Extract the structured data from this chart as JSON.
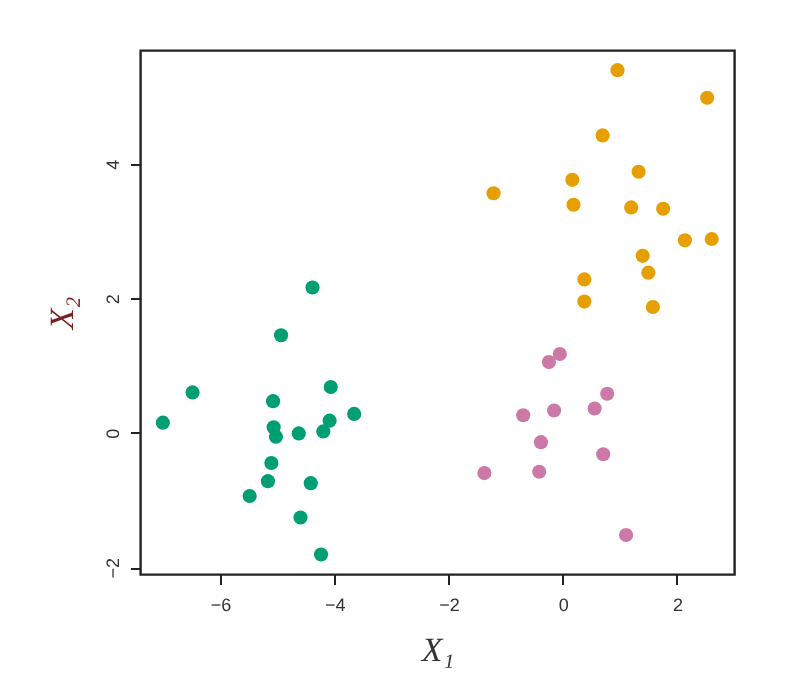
{
  "chart_data": {
    "type": "scatter",
    "xlabel": "X₁",
    "ylabel": "X₂",
    "xlim": [
      -7.4,
      3.0
    ],
    "ylim": [
      -2.1,
      5.69
    ],
    "xticks": [
      -6,
      -4,
      -2,
      0,
      2
    ],
    "yticks": [
      -2,
      0,
      2,
      4
    ],
    "grid": false,
    "legend": false,
    "marker": "circle",
    "series": [
      {
        "color": "#009e73",
        "x": [
          -7.0,
          -6.48,
          -5.07,
          -5.06,
          -5.02,
          -4.62,
          -4.19,
          -4.08,
          -4.06,
          -3.65,
          -4.38,
          -4.93,
          -5.1,
          -5.16,
          -5.48,
          -4.41,
          -4.59,
          -4.23
        ],
        "values": [
          0.15,
          0.6,
          0.47,
          0.08,
          -0.06,
          -0.01,
          0.02,
          0.18,
          0.68,
          0.28,
          2.16,
          1.45,
          -0.45,
          -0.72,
          -0.94,
          -0.75,
          -1.26,
          -1.81
        ]
      },
      {
        "color": "#e69f00",
        "x": [
          0.96,
          2.53,
          0.7,
          -1.21,
          0.17,
          0.19,
          1.33,
          1.2,
          1.76,
          2.14,
          2.61,
          1.4,
          1.5,
          0.38,
          0.38,
          1.58
        ],
        "values": [
          5.39,
          4.98,
          4.42,
          3.56,
          3.76,
          3.39,
          3.88,
          3.35,
          3.33,
          2.86,
          2.88,
          2.63,
          2.38,
          2.28,
          1.95,
          1.87
        ]
      },
      {
        "color": "#cc79a7",
        "x": [
          -0.05,
          -0.24,
          0.78,
          0.56,
          -0.15,
          -0.69,
          -0.38,
          0.71,
          -1.37,
          -0.41,
          1.11
        ],
        "values": [
          1.17,
          1.05,
          0.58,
          0.36,
          0.33,
          0.26,
          -0.14,
          -0.32,
          -0.6,
          -0.58,
          -1.52
        ]
      }
    ]
  }
}
